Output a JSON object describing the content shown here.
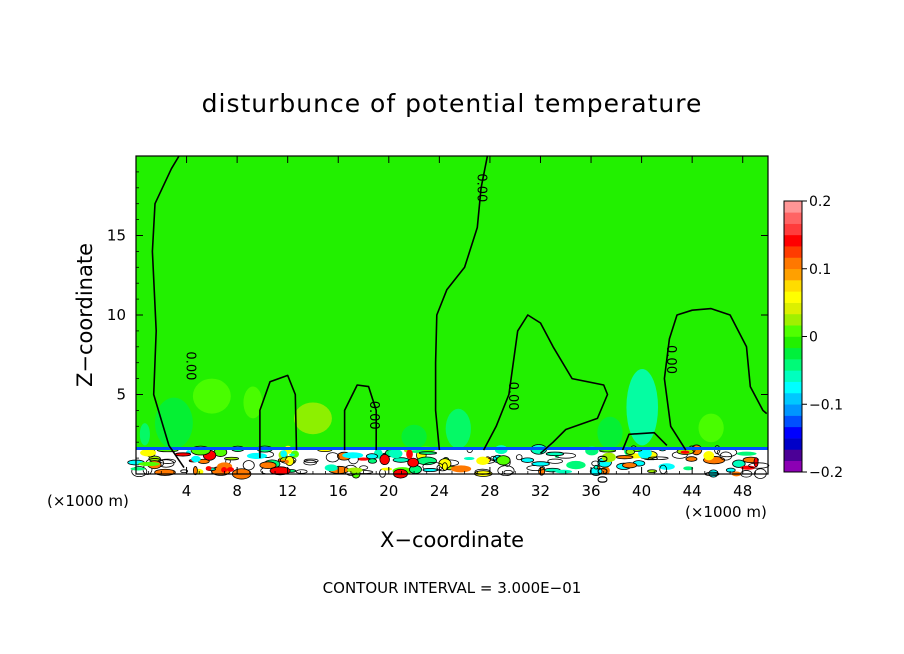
{
  "chart_data": {
    "type": "heatmap",
    "title": "disturbunce of potential temperature",
    "xlabel": "X−coordinate",
    "ylabel": "Z−coordinate",
    "x_unit_left": "(×1000 m)",
    "x_unit_right": "(×1000 m)",
    "footer": "CONTOUR INTERVAL = 3.000E−01",
    "xlim": [
      0,
      50
    ],
    "ylim": [
      0,
      20
    ],
    "x_ticks": [
      4,
      8,
      12,
      16,
      20,
      24,
      28,
      32,
      36,
      40,
      44,
      48
    ],
    "x_tick_labels": [
      "4",
      "8",
      "12",
      "16",
      "20",
      "24",
      "28",
      "32",
      "36",
      "40",
      "44",
      "48"
    ],
    "y_ticks": [
      5,
      10,
      15
    ],
    "y_tick_labels": [
      "5",
      "10",
      "15"
    ],
    "background_value": 0.0,
    "contour_labels": [
      {
        "text": "0.00",
        "x": 4.0,
        "y": 6.8
      },
      {
        "text": "0.00",
        "x": 27.0,
        "y": 18.0
      },
      {
        "text": "0.00",
        "x": 29.5,
        "y": 4.9
      },
      {
        "text": "0.00",
        "x": 18.5,
        "y": 3.7
      },
      {
        "text": "0.00",
        "x": 42.0,
        "y": 7.2
      },
      {
        "text": "0.00",
        "x": 36.5,
        "y": 0.3
      }
    ],
    "contours": [
      [
        [
          3.8,
          0.4
        ],
        [
          2.6,
          1.8
        ],
        [
          1.4,
          5.0
        ],
        [
          1.6,
          9.0
        ],
        [
          1.3,
          14.0
        ],
        [
          1.5,
          17.0
        ],
        [
          2.8,
          19.2
        ],
        [
          3.4,
          20.0
        ]
      ],
      [
        [
          27.8,
          20.0
        ],
        [
          27.3,
          18.0
        ],
        [
          27.0,
          15.5
        ],
        [
          26.0,
          13.0
        ],
        [
          24.6,
          11.6
        ],
        [
          23.8,
          10.0
        ],
        [
          23.7,
          7.0
        ],
        [
          23.7,
          4.0
        ],
        [
          24.0,
          1.5
        ]
      ],
      [
        [
          9.8,
          1.0
        ],
        [
          9.8,
          4.0
        ],
        [
          10.6,
          5.8
        ],
        [
          12.0,
          6.2
        ],
        [
          12.6,
          5.0
        ],
        [
          12.7,
          1.5
        ]
      ],
      [
        [
          16.5,
          1.5
        ],
        [
          16.5,
          4.0
        ],
        [
          17.5,
          5.6
        ],
        [
          18.4,
          5.5
        ],
        [
          19.0,
          4.0
        ],
        [
          19.0,
          1.5
        ]
      ],
      [
        [
          27.5,
          1.5
        ],
        [
          28.5,
          3.0
        ],
        [
          29.5,
          5.0
        ],
        [
          30.2,
          9.0
        ],
        [
          31.0,
          10.0
        ],
        [
          32.0,
          9.5
        ],
        [
          33.0,
          8.0
        ],
        [
          34.5,
          6.0
        ],
        [
          37.0,
          5.6
        ],
        [
          37.3,
          5.0
        ],
        [
          36.5,
          3.5
        ],
        [
          34.0,
          2.8
        ],
        [
          33.0,
          2.0
        ],
        [
          32.0,
          1.3
        ]
      ],
      [
        [
          43.5,
          1.5
        ],
        [
          42.3,
          3.0
        ],
        [
          41.8,
          6.0
        ],
        [
          42.2,
          8.5
        ],
        [
          42.8,
          10.0
        ],
        [
          44.0,
          10.3
        ],
        [
          45.5,
          10.4
        ],
        [
          47.0,
          10.0
        ],
        [
          48.3,
          8.0
        ],
        [
          48.6,
          5.5
        ],
        [
          49.6,
          4.0
        ],
        [
          49.9,
          3.8
        ]
      ],
      [
        [
          38.5,
          1.5
        ],
        [
          39.0,
          2.5
        ],
        [
          41.0,
          2.6
        ],
        [
          42.0,
          1.8
        ]
      ]
    ],
    "patches": [
      {
        "x": 4.5,
        "y": 3.8,
        "w": 3.0,
        "h": 2.2,
        "value": 0.015
      },
      {
        "x": 8.5,
        "y": 3.5,
        "w": 1.5,
        "h": 2.0,
        "value": 0.015
      },
      {
        "x": 12.5,
        "y": 2.5,
        "w": 3.0,
        "h": 2.0,
        "value": 0.02
      },
      {
        "x": 1.5,
        "y": 1.6,
        "w": 3.0,
        "h": 3.2,
        "value": -0.025
      },
      {
        "x": 21.0,
        "y": 1.6,
        "w": 2.0,
        "h": 1.5,
        "value": -0.03
      },
      {
        "x": 24.5,
        "y": 1.6,
        "w": 2.0,
        "h": 2.5,
        "value": -0.05
      },
      {
        "x": 38.8,
        "y": 1.8,
        "w": 2.5,
        "h": 4.8,
        "value": -0.06
      },
      {
        "x": 36.5,
        "y": 1.6,
        "w": 2.0,
        "h": 2.0,
        "value": -0.03
      },
      {
        "x": 44.5,
        "y": 2.0,
        "w": 2.0,
        "h": 1.8,
        "value": 0.015
      },
      {
        "x": 0.3,
        "y": 1.8,
        "w": 0.8,
        "h": 1.4,
        "value": -0.04
      }
    ],
    "surface_layer": {
      "z_top": 1.6,
      "z_band": 1.3
    },
    "colorbar": {
      "min": -0.2,
      "max": 0.2,
      "colors": [
        "#8c00b4",
        "#4b0096",
        "#0000c8",
        "#0000ff",
        "#0050ff",
        "#0096ff",
        "#00c8ff",
        "#00ffff",
        "#00ffbe",
        "#00fa78",
        "#00f03c",
        "#22f000",
        "#50ff00",
        "#a0f000",
        "#dcf000",
        "#ffff00",
        "#ffdc00",
        "#ffa000",
        "#ff7800",
        "#ff3c00",
        "#ff0000",
        "#ff3c3c",
        "#ff6464",
        "#ff9696"
      ],
      "tick_values": [
        -0.2,
        -0.1,
        0,
        0.1,
        0.2
      ],
      "tick_labels": [
        "−0.2",
        "−0.1",
        "0",
        "0.1",
        "0.2"
      ]
    }
  }
}
